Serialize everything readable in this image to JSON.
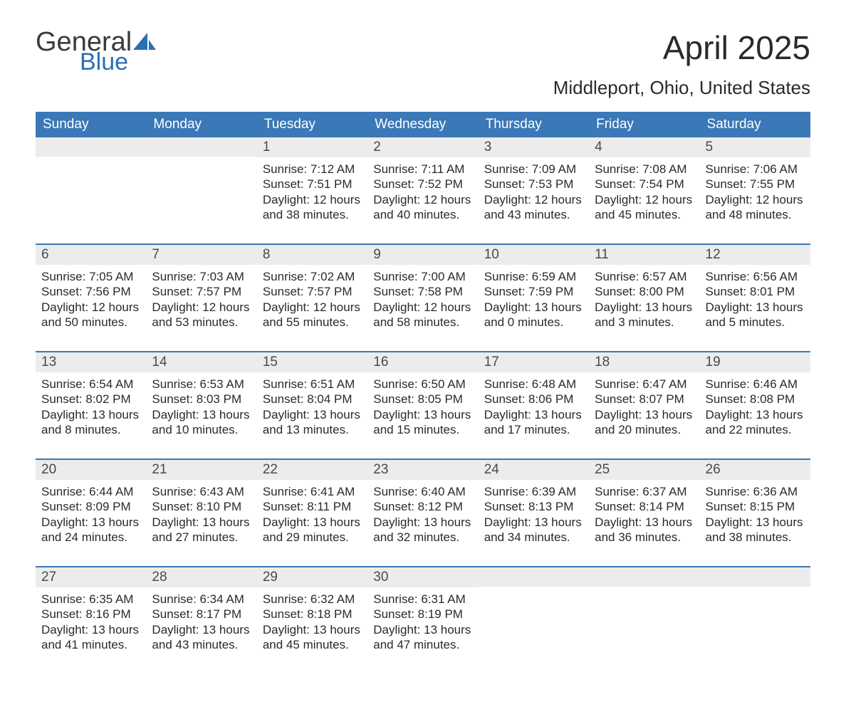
{
  "logo": {
    "word1": "General",
    "word2": "Blue",
    "icon_color": "#2d6fb5"
  },
  "title": "April 2025",
  "location": "Middleport, Ohio, United States",
  "header_bg": "#3b78b8",
  "daynum_bg": "#ececec",
  "weekdays": [
    "Sunday",
    "Monday",
    "Tuesday",
    "Wednesday",
    "Thursday",
    "Friday",
    "Saturday"
  ],
  "weeks": [
    [
      {
        "n": "",
        "sunrise": "",
        "sunset": "",
        "daylight": ""
      },
      {
        "n": "",
        "sunrise": "",
        "sunset": "",
        "daylight": ""
      },
      {
        "n": "1",
        "sunrise": "7:12 AM",
        "sunset": "7:51 PM",
        "daylight": "12 hours and 38 minutes."
      },
      {
        "n": "2",
        "sunrise": "7:11 AM",
        "sunset": "7:52 PM",
        "daylight": "12 hours and 40 minutes."
      },
      {
        "n": "3",
        "sunrise": "7:09 AM",
        "sunset": "7:53 PM",
        "daylight": "12 hours and 43 minutes."
      },
      {
        "n": "4",
        "sunrise": "7:08 AM",
        "sunset": "7:54 PM",
        "daylight": "12 hours and 45 minutes."
      },
      {
        "n": "5",
        "sunrise": "7:06 AM",
        "sunset": "7:55 PM",
        "daylight": "12 hours and 48 minutes."
      }
    ],
    [
      {
        "n": "6",
        "sunrise": "7:05 AM",
        "sunset": "7:56 PM",
        "daylight": "12 hours and 50 minutes."
      },
      {
        "n": "7",
        "sunrise": "7:03 AM",
        "sunset": "7:57 PM",
        "daylight": "12 hours and 53 minutes."
      },
      {
        "n": "8",
        "sunrise": "7:02 AM",
        "sunset": "7:57 PM",
        "daylight": "12 hours and 55 minutes."
      },
      {
        "n": "9",
        "sunrise": "7:00 AM",
        "sunset": "7:58 PM",
        "daylight": "12 hours and 58 minutes."
      },
      {
        "n": "10",
        "sunrise": "6:59 AM",
        "sunset": "7:59 PM",
        "daylight": "13 hours and 0 minutes."
      },
      {
        "n": "11",
        "sunrise": "6:57 AM",
        "sunset": "8:00 PM",
        "daylight": "13 hours and 3 minutes."
      },
      {
        "n": "12",
        "sunrise": "6:56 AM",
        "sunset": "8:01 PM",
        "daylight": "13 hours and 5 minutes."
      }
    ],
    [
      {
        "n": "13",
        "sunrise": "6:54 AM",
        "sunset": "8:02 PM",
        "daylight": "13 hours and 8 minutes."
      },
      {
        "n": "14",
        "sunrise": "6:53 AM",
        "sunset": "8:03 PM",
        "daylight": "13 hours and 10 minutes."
      },
      {
        "n": "15",
        "sunrise": "6:51 AM",
        "sunset": "8:04 PM",
        "daylight": "13 hours and 13 minutes."
      },
      {
        "n": "16",
        "sunrise": "6:50 AM",
        "sunset": "8:05 PM",
        "daylight": "13 hours and 15 minutes."
      },
      {
        "n": "17",
        "sunrise": "6:48 AM",
        "sunset": "8:06 PM",
        "daylight": "13 hours and 17 minutes."
      },
      {
        "n": "18",
        "sunrise": "6:47 AM",
        "sunset": "8:07 PM",
        "daylight": "13 hours and 20 minutes."
      },
      {
        "n": "19",
        "sunrise": "6:46 AM",
        "sunset": "8:08 PM",
        "daylight": "13 hours and 22 minutes."
      }
    ],
    [
      {
        "n": "20",
        "sunrise": "6:44 AM",
        "sunset": "8:09 PM",
        "daylight": "13 hours and 24 minutes."
      },
      {
        "n": "21",
        "sunrise": "6:43 AM",
        "sunset": "8:10 PM",
        "daylight": "13 hours and 27 minutes."
      },
      {
        "n": "22",
        "sunrise": "6:41 AM",
        "sunset": "8:11 PM",
        "daylight": "13 hours and 29 minutes."
      },
      {
        "n": "23",
        "sunrise": "6:40 AM",
        "sunset": "8:12 PM",
        "daylight": "13 hours and 32 minutes."
      },
      {
        "n": "24",
        "sunrise": "6:39 AM",
        "sunset": "8:13 PM",
        "daylight": "13 hours and 34 minutes."
      },
      {
        "n": "25",
        "sunrise": "6:37 AM",
        "sunset": "8:14 PM",
        "daylight": "13 hours and 36 minutes."
      },
      {
        "n": "26",
        "sunrise": "6:36 AM",
        "sunset": "8:15 PM",
        "daylight": "13 hours and 38 minutes."
      }
    ],
    [
      {
        "n": "27",
        "sunrise": "6:35 AM",
        "sunset": "8:16 PM",
        "daylight": "13 hours and 41 minutes."
      },
      {
        "n": "28",
        "sunrise": "6:34 AM",
        "sunset": "8:17 PM",
        "daylight": "13 hours and 43 minutes."
      },
      {
        "n": "29",
        "sunrise": "6:32 AM",
        "sunset": "8:18 PM",
        "daylight": "13 hours and 45 minutes."
      },
      {
        "n": "30",
        "sunrise": "6:31 AM",
        "sunset": "8:19 PM",
        "daylight": "13 hours and 47 minutes."
      },
      {
        "n": "",
        "sunrise": "",
        "sunset": "",
        "daylight": ""
      },
      {
        "n": "",
        "sunrise": "",
        "sunset": "",
        "daylight": ""
      },
      {
        "n": "",
        "sunrise": "",
        "sunset": "",
        "daylight": ""
      }
    ]
  ],
  "labels": {
    "sunrise": "Sunrise: ",
    "sunset": "Sunset: ",
    "daylight": "Daylight: "
  }
}
